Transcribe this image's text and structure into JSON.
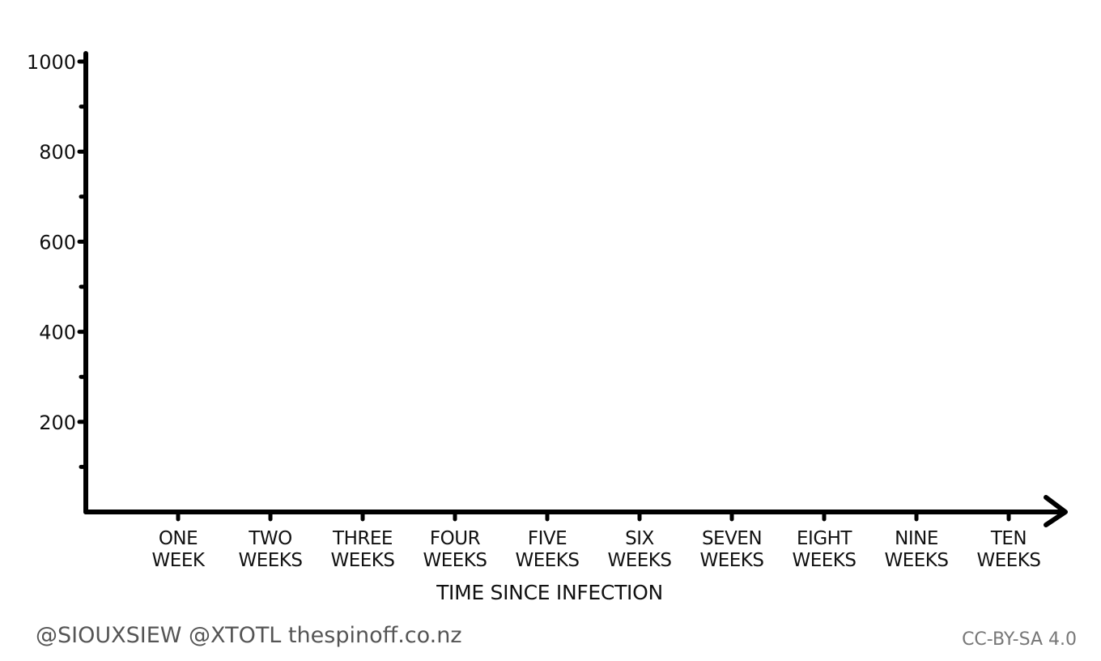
{
  "chart_data": {
    "type": "line",
    "title": "",
    "xlabel": "TIME SINCE INFECTION",
    "ylabel": "",
    "categories": [
      [
        "ONE",
        "WEEK"
      ],
      [
        "TWO",
        "WEEKS"
      ],
      [
        "THREE",
        "WEEKS"
      ],
      [
        "FOUR",
        "WEEKS"
      ],
      [
        "FIVE",
        "WEEKS"
      ],
      [
        "SIX",
        "WEEKS"
      ],
      [
        "SEVEN",
        "WEEKS"
      ],
      [
        "EIGHT",
        "WEEKS"
      ],
      [
        "NINE",
        "WEEKS"
      ],
      [
        "TEN",
        "WEEKS"
      ]
    ],
    "y_ticks": [
      200,
      400,
      600,
      800,
      1000
    ],
    "y_tick_labels": [
      "200",
      "400",
      "600",
      "800",
      "1000"
    ],
    "y_minor_ticks": [
      100,
      300,
      500,
      700,
      900
    ],
    "ylim": [
      0,
      1000
    ],
    "series": [],
    "grid": false,
    "legend": "none"
  },
  "footer": {
    "credit": "@SIOUXSIEW @XTOTL thespinoff.co.nz",
    "license": "CC-BY-SA 4.0"
  }
}
